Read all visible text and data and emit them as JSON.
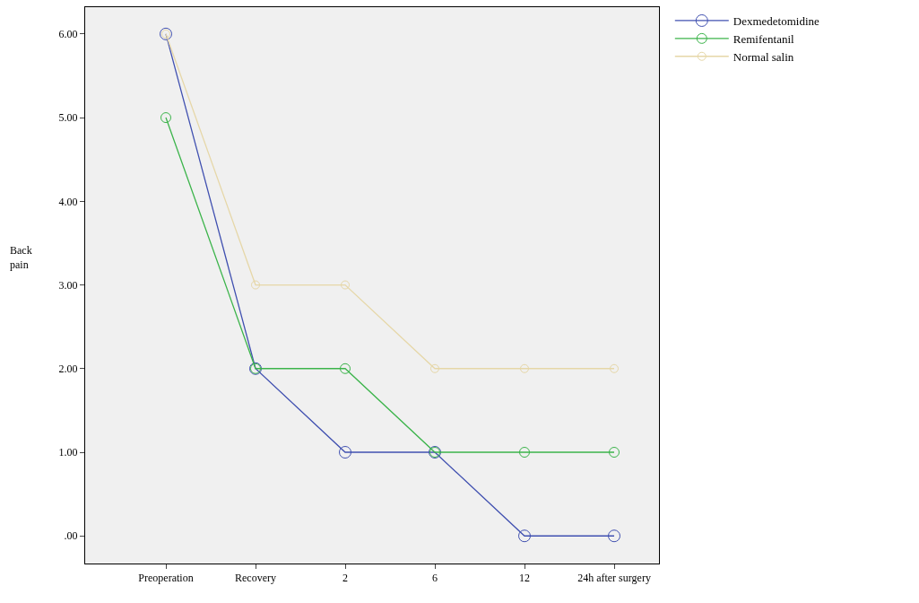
{
  "chart_data": {
    "type": "line",
    "ylabel": "Back pain",
    "categories": [
      "Preoperation",
      "Recovery",
      "2",
      "6",
      "12",
      "24h after surgery"
    ],
    "series": [
      {
        "name": "Dexmedetomidine",
        "color": "#4050b0",
        "values": [
          6,
          2,
          1,
          1,
          0,
          0
        ]
      },
      {
        "name": "Remifentanil",
        "color": "#3cb44b",
        "values": [
          5,
          2,
          2,
          1,
          1,
          1
        ]
      },
      {
        "name": "Normal salin",
        "color": "#e6d7a8",
        "values": [
          6,
          3,
          3,
          2,
          2,
          2
        ]
      }
    ],
    "ylim": [
      -0.33,
      6.32
    ],
    "yticks": [
      {
        "value": 0,
        "label": ".00"
      },
      {
        "value": 1,
        "label": "1.00"
      },
      {
        "value": 2,
        "label": "2.00"
      },
      {
        "value": 3,
        "label": "3.00"
      },
      {
        "value": 4,
        "label": "4.00"
      },
      {
        "value": 5,
        "label": "5.00"
      },
      {
        "value": 6,
        "label": "6.00"
      }
    ],
    "grid": false,
    "legend": "top right",
    "marker": "circle",
    "line_style": "solid"
  }
}
